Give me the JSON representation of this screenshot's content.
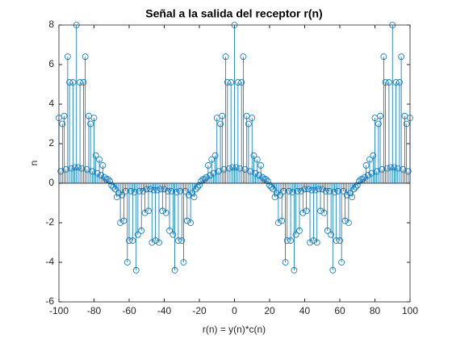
{
  "chart_data": {
    "type": "stem",
    "title": "Señal a la salida del receptor r(n)",
    "xlabel": "r(n) = y(n)*c(n)",
    "ylabel": "n",
    "color": "#0072bd",
    "xlim": [
      -100,
      100
    ],
    "ylim": [
      -6,
      8
    ],
    "xticks": [
      -100,
      -80,
      -60,
      -40,
      -20,
      0,
      20,
      40,
      60,
      80,
      100
    ],
    "yticks": [
      -6,
      -4,
      -2,
      0,
      2,
      4,
      6,
      8
    ],
    "x": [
      -100,
      -99,
      -98,
      -97,
      -96,
      -95,
      -94,
      -93,
      -92,
      -91,
      -90,
      -89,
      -88,
      -87,
      -86,
      -85,
      -84,
      -83,
      -82,
      -81,
      -80,
      -79,
      -78,
      -77,
      -76,
      -75,
      -74,
      -73,
      -72,
      -71,
      -70,
      -69,
      -68,
      -67,
      -66,
      -65,
      -64,
      -63,
      -62,
      -61,
      -60,
      -59,
      -58,
      -57,
      -56,
      -55,
      -54,
      -53,
      -52,
      -51,
      -50,
      -49,
      -48,
      -47,
      -46,
      -45,
      -44,
      -43,
      -42,
      -41,
      -40,
      -39,
      -38,
      -37,
      -36,
      -35,
      -34,
      -33,
      -32,
      -31,
      -30,
      -29,
      -28,
      -27,
      -26,
      -25,
      -24,
      -23,
      -22,
      -21,
      -20,
      -19,
      -18,
      -17,
      -16,
      -15,
      -14,
      -13,
      -12,
      -11,
      -10,
      -9,
      -8,
      -7,
      -6,
      -5,
      -4,
      -3,
      -2,
      -1,
      0,
      1,
      2,
      3,
      4,
      5,
      6,
      7,
      8,
      9,
      10,
      11,
      12,
      13,
      14,
      15,
      16,
      17,
      18,
      19,
      20,
      21,
      22,
      23,
      24,
      25,
      26,
      27,
      28,
      29,
      30,
      31,
      32,
      33,
      34,
      35,
      36,
      37,
      38,
      39,
      40,
      41,
      42,
      43,
      44,
      45,
      46,
      47,
      48,
      49,
      50,
      51,
      52,
      53,
      54,
      55,
      56,
      57,
      58,
      59,
      60,
      61,
      62,
      63,
      64,
      65,
      66,
      67,
      68,
      69,
      70,
      71,
      72,
      73,
      74,
      75,
      76,
      77,
      78,
      79,
      80,
      81,
      82,
      83,
      84,
      85,
      86,
      87,
      88,
      89,
      90,
      91,
      92,
      93,
      94,
      95,
      96,
      97,
      98,
      99,
      100
    ],
    "values": [
      3.3,
      0.6,
      3.0,
      3.4,
      0.7,
      6.4,
      5.1,
      0.75,
      5.1,
      0.8,
      8,
      0.8,
      5.1,
      0.75,
      5.1,
      6.4,
      0.7,
      3.4,
      3.0,
      0.6,
      3.3,
      1.4,
      0.5,
      1.2,
      0.4,
      0.9,
      0.3,
      0.2,
      0.2,
      0.1,
      -0.1,
      -0.2,
      -0.3,
      -0.7,
      -0.5,
      -2.0,
      -0.6,
      -1.9,
      -0.4,
      -4.0,
      -2.9,
      -0.4,
      -2.9,
      -0.45,
      -4.4,
      -2.6,
      -0.4,
      -2.4,
      -0.4,
      -1.5,
      -0.3,
      -1.4,
      -0.3,
      -3.0,
      -0.35,
      -2.9,
      -0.35,
      -3.0,
      -0.3,
      -1.4,
      -0.3,
      -1.5,
      -0.4,
      -2.4,
      -0.4,
      -2.6,
      -4.4,
      -0.45,
      -2.9,
      -0.4,
      -2.9,
      -4.0,
      -0.4,
      -1.9,
      -0.6,
      -2.0,
      -0.5,
      -0.7,
      -0.3,
      -0.2,
      -0.1,
      0.1,
      0.2,
      0.2,
      0.3,
      0.9,
      0.4,
      1.2,
      0.5,
      1.4,
      3.3,
      0.6,
      3.0,
      3.4,
      0.7,
      6.4,
      5.1,
      0.75,
      5.1,
      0.8,
      8,
      0.8,
      5.1,
      0.75,
      5.1,
      6.4,
      0.7,
      3.4,
      3.0,
      0.6,
      3.3,
      1.4,
      0.5,
      1.2,
      0.4,
      0.9,
      0.3,
      0.2,
      0.2,
      0.1,
      -0.1,
      -0.2,
      -0.3,
      -0.7,
      -0.5,
      -2.0,
      -0.6,
      -1.9,
      -0.4,
      -4.0,
      -2.9,
      -0.4,
      -2.9,
      -0.45,
      -4.4,
      -2.6,
      -0.4,
      -2.4,
      -0.4,
      -1.5,
      -0.3,
      -1.4,
      -0.3,
      -3.0,
      -0.35,
      -2.9,
      -0.35,
      -3.0,
      -0.3,
      -1.4,
      -0.3,
      -1.5,
      -0.4,
      -2.4,
      -0.4,
      -2.6,
      -4.4,
      -0.45,
      -2.9,
      -0.4,
      -2.9,
      -4.0,
      -0.4,
      -1.9,
      -0.6,
      -2.0,
      -0.5,
      -0.7,
      -0.3,
      -0.2,
      -0.1,
      0.1,
      0.2,
      0.2,
      0.3,
      0.9,
      0.4,
      1.2,
      0.5,
      1.4,
      3.3,
      0.6,
      3.0,
      3.4,
      0.7,
      6.4,
      5.1,
      0.75,
      5.1,
      0.8,
      8,
      0.8,
      5.1,
      0.75,
      5.1,
      6.4,
      0.7,
      3.4,
      3.0,
      0.6,
      3.3
    ]
  }
}
